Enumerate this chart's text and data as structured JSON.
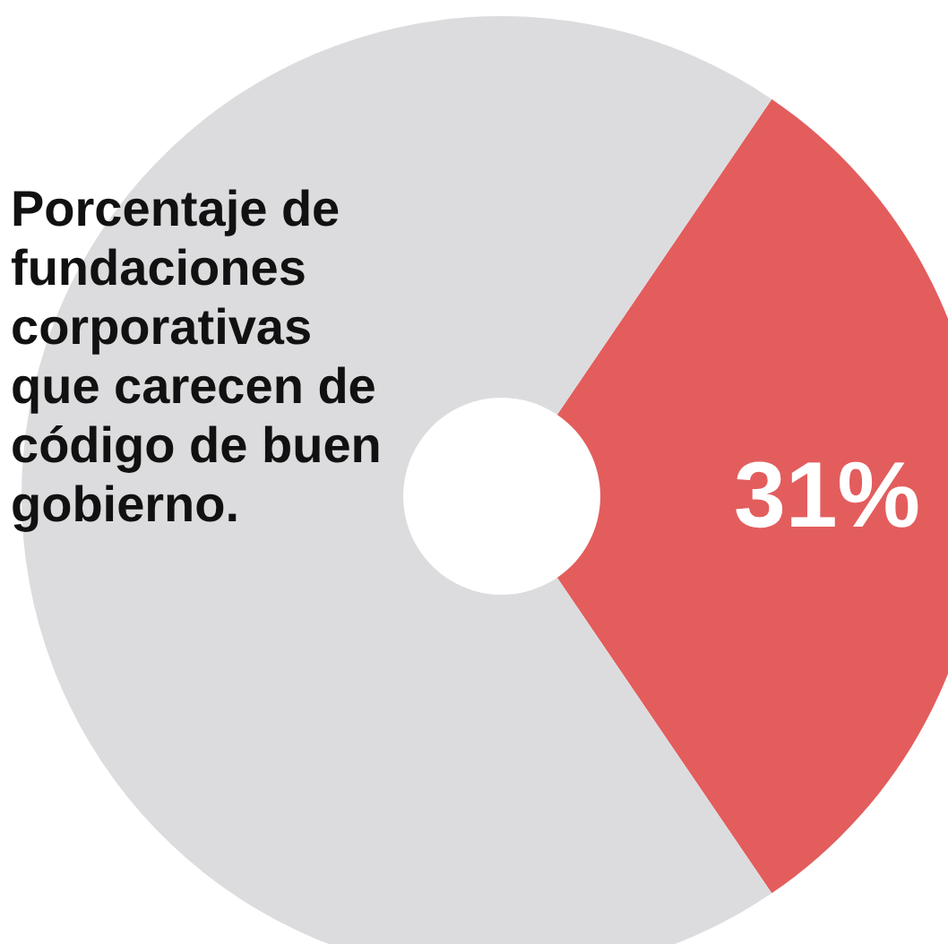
{
  "chart_data": {
    "type": "donut",
    "title": "Porcentaje de fundaciones corporativas que carecen de código de buen gobierno.",
    "categories": [
      null,
      null
    ],
    "values": [
      31,
      69
    ],
    "colors": [
      "#e35d5d",
      "#dcdcde"
    ],
    "value_labels": [
      "31%",
      null
    ],
    "legend": false
  }
}
